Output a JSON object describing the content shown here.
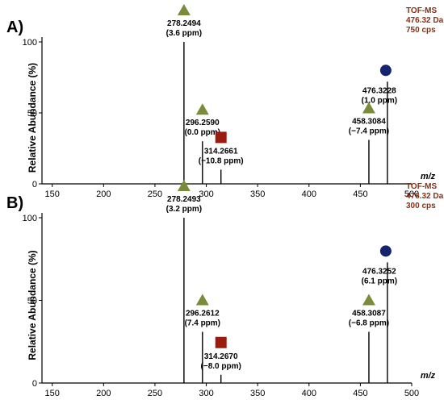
{
  "chart_data": [
    {
      "type": "bar",
      "panel_label": "A)",
      "ylabel": "Relative Abundance (%)",
      "xlabel_unit": "m/z",
      "xlim": [
        140,
        500
      ],
      "ylim": [
        0,
        100
      ],
      "x_ticks": [
        150,
        200,
        250,
        300,
        350,
        400,
        450,
        500
      ],
      "y_ticks": [
        0,
        50,
        100
      ],
      "annotation_lines": [
        "TOF-MS",
        "476.32 Da",
        "750 cps"
      ],
      "peaks": [
        {
          "mz": 278.2494,
          "rel": 100,
          "label1": "278.2494",
          "label2": "(3.6 ppm)",
          "marker": "triangle"
        },
        {
          "mz": 296.259,
          "rel": 30,
          "label1": "296.2590",
          "label2": "(0.0 ppm)",
          "marker": "triangle"
        },
        {
          "mz": 314.2661,
          "rel": 10,
          "label1": "314.2661",
          "label2": "(−10.8 ppm)",
          "marker": "square"
        },
        {
          "mz": 458.3084,
          "rel": 31,
          "label1": "458.3084",
          "label2": "(−7.4 ppm)",
          "marker": "triangle"
        },
        {
          "mz": 476.3228,
          "rel": 72,
          "label1": "476.3228",
          "label2": "(1.0 ppm)",
          "marker": "circle"
        }
      ]
    },
    {
      "type": "bar",
      "panel_label": "B)",
      "ylabel": "Relative Abundance (%)",
      "xlabel_unit": "m/z",
      "xlim": [
        140,
        500
      ],
      "ylim": [
        0,
        100
      ],
      "x_ticks": [
        150,
        200,
        250,
        300,
        350,
        400,
        450,
        500
      ],
      "y_ticks": [
        0,
        50,
        100
      ],
      "annotation_lines": [
        "TOF-MS",
        "476.32 Da",
        "300 cps"
      ],
      "peaks": [
        {
          "mz": 278.2493,
          "rel": 100,
          "label1": "278.2493",
          "label2": "(3.2 ppm)",
          "marker": "triangle"
        },
        {
          "mz": 296.2612,
          "rel": 31,
          "label1": "296.2612",
          "label2": "(7.4 ppm)",
          "marker": "triangle"
        },
        {
          "mz": 314.267,
          "rel": 5,
          "label1": "314.2670",
          "label2": "(−8.0 ppm)",
          "marker": "square"
        },
        {
          "mz": 458.3087,
          "rel": 31,
          "label1": "458.3087",
          "label2": "(−6.8 ppm)",
          "marker": "triangle"
        },
        {
          "mz": 476.3252,
          "rel": 73,
          "label1": "476.3252",
          "label2": "(6.1 ppm)",
          "marker": "circle"
        }
      ]
    }
  ],
  "colors": {
    "triangle": "#7a8b3a",
    "square": "#9b1c0e",
    "circle": "#14246e",
    "annotation": "#8b2e10",
    "line": "#000000"
  }
}
